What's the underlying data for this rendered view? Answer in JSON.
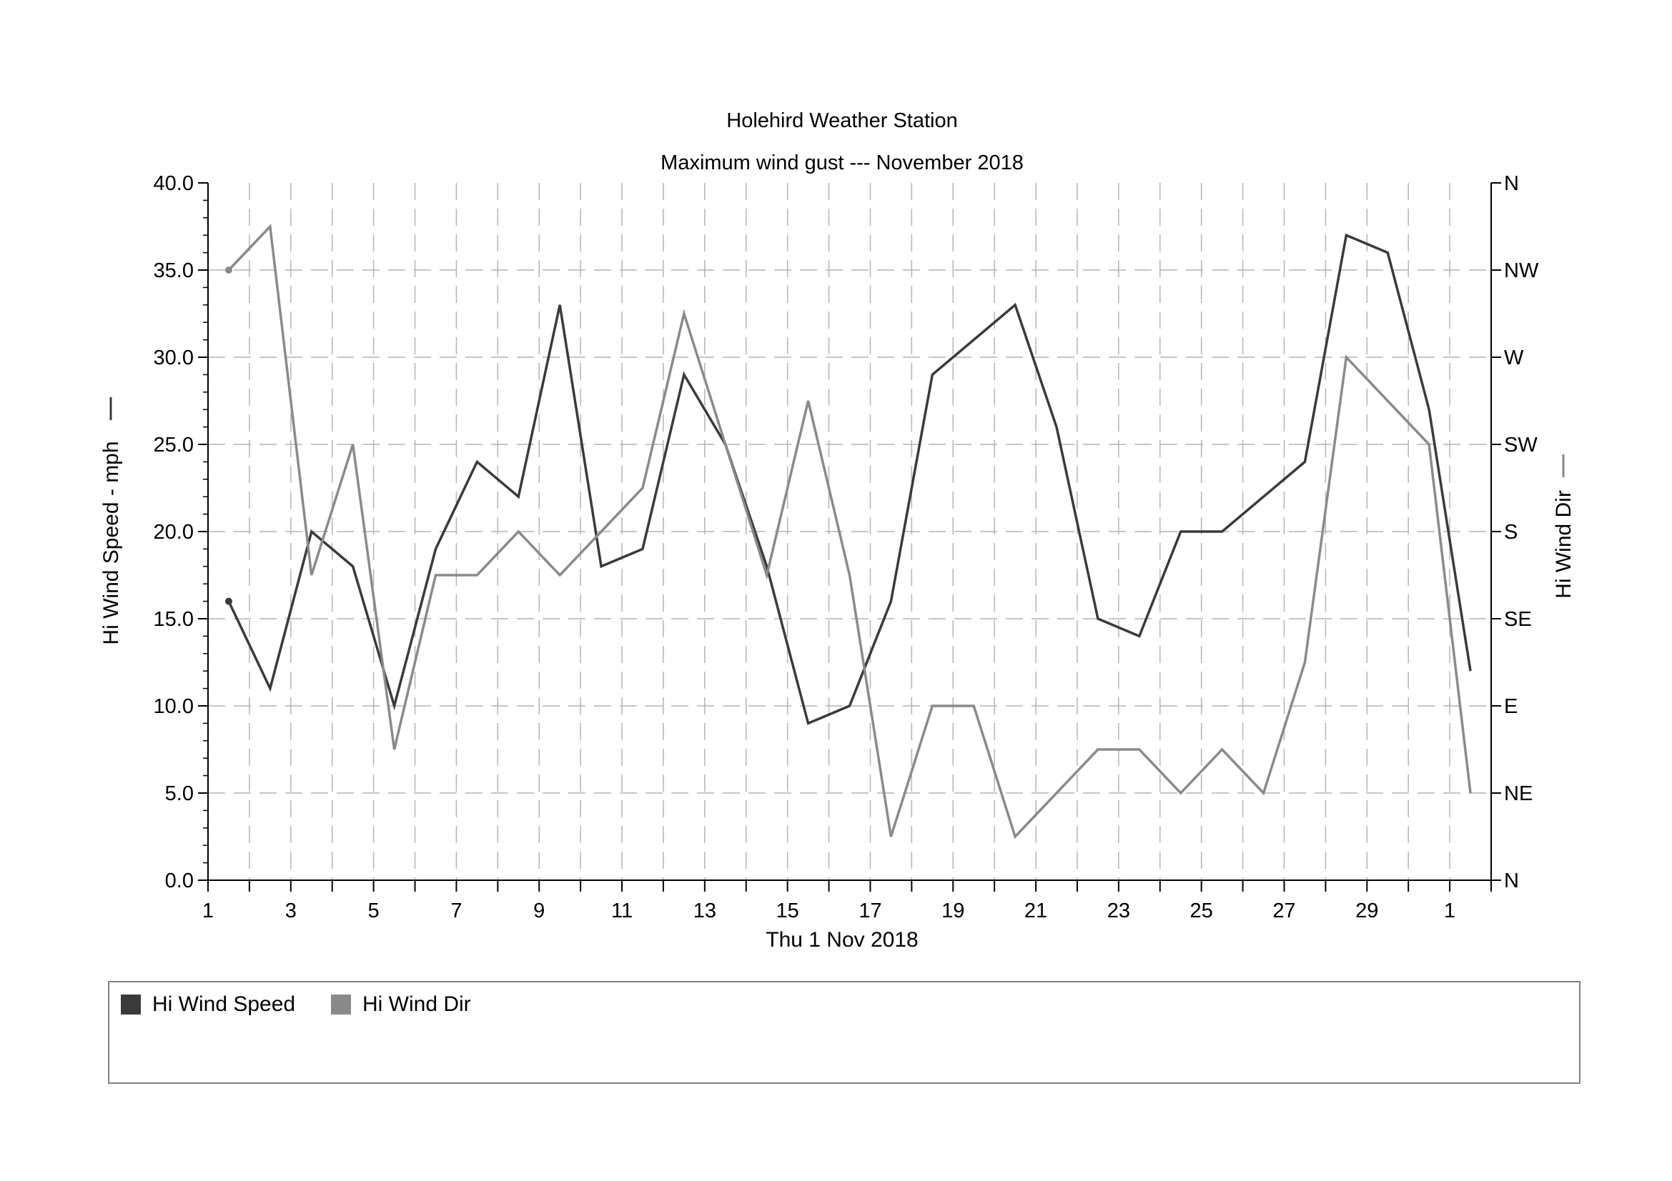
{
  "colors": {
    "speed": "#3a3a3a",
    "dir": "#8a8a8a",
    "grid": "#b4b4b4",
    "axis": "#000000"
  },
  "chart_data": {
    "type": "line",
    "title": "Holehird Weather Station",
    "subtitle": "Maximum wind gust --- November 2018",
    "xlabel": "Thu 1 Nov 2018",
    "ylabel_left": "Hi Wind Speed - mph",
    "ylabel_right": "Hi Wind Dir",
    "x_tick_labels": [
      "1",
      "3",
      "5",
      "7",
      "9",
      "11",
      "13",
      "15",
      "17",
      "19",
      "21",
      "23",
      "25",
      "27",
      "29",
      "1"
    ],
    "x_range_days": [
      1,
      32
    ],
    "ylim_left": [
      0,
      40
    ],
    "y_tick_labels_left": [
      "0.0",
      "5.0",
      "10.0",
      "15.0",
      "20.0",
      "25.0",
      "30.0",
      "35.0",
      "40.0"
    ],
    "y_tick_labels_right": [
      "N",
      "NE",
      "E",
      "SE",
      "S",
      "SW",
      "W",
      "NW",
      "N"
    ],
    "grid": true,
    "legend_position": "bottom",
    "x": [
      1.5,
      2.5,
      3.5,
      4.5,
      5.5,
      6.5,
      7.5,
      8.5,
      9.5,
      10.5,
      11.5,
      12.5,
      13.5,
      14.5,
      15.5,
      16.5,
      17.5,
      18.5,
      19.5,
      20.5,
      21.5,
      22.5,
      23.5,
      24.5,
      25.5,
      26.5,
      27.5,
      28.5,
      29.5,
      30.5,
      31.5
    ],
    "series": [
      {
        "name": "Hi Wind Speed",
        "axis": "left",
        "values": [
          16,
          11,
          20,
          18,
          10,
          19,
          24,
          22,
          33,
          18,
          19,
          29,
          25,
          18,
          9,
          10,
          16,
          29,
          31,
          33,
          26,
          15,
          14,
          20,
          20,
          22,
          24,
          37,
          36,
          27,
          12
        ]
      },
      {
        "name": "Hi Wind Dir",
        "axis": "right",
        "values": [
          35,
          37.5,
          17.5,
          25,
          7.5,
          17.5,
          17.5,
          20,
          17.5,
          20,
          22.5,
          32.5,
          25,
          17.5,
          27.5,
          17.5,
          2.5,
          10,
          10,
          2.5,
          5,
          7.5,
          7.5,
          5,
          7.5,
          5,
          12.5,
          30,
          27.5,
          25,
          5
        ]
      }
    ]
  }
}
